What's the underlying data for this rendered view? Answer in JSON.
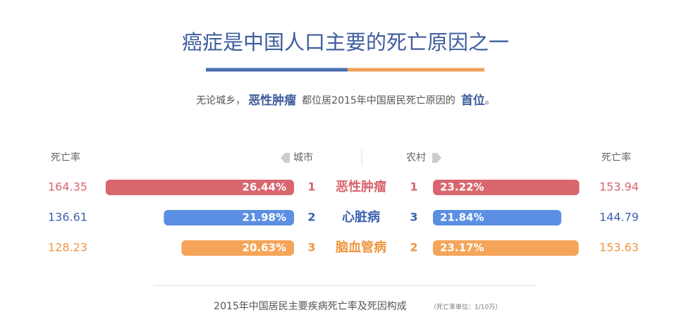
{
  "title": "癌症是中国人口主要的死亡原因之一",
  "subtitle": {
    "before": "无论城乡，",
    "highlight1": "恶性肿瘤",
    "middle": "都位居2015年中国居民死亡原因的",
    "highlight2": "首位",
    "after": "。"
  },
  "headers": {
    "left_rate": "死亡率",
    "city": "城市",
    "rural": "农村",
    "right_rate": "死亡率"
  },
  "rows": [
    {
      "disease": "恶性肿瘤",
      "color": "#d9666f",
      "city_rate": "164.35",
      "city_share": 26.44,
      "city_share_label": "26.44%",
      "city_rank": "1",
      "rural_rank": "1",
      "rural_share": 23.22,
      "rural_share_label": "23.22%",
      "rural_rate": "153.94"
    },
    {
      "disease": "心脏病",
      "color": "#5b8fe3",
      "city_rate": "136.61",
      "city_share": 21.98,
      "city_share_label": "21.98%",
      "city_rank": "2",
      "rural_rank": "3",
      "rural_share": 21.84,
      "rural_share_label": "21.84%",
      "rural_rate": "144.79"
    },
    {
      "disease": "脑血管病",
      "color": "#f5a55a",
      "city_rate": "128.23",
      "city_share": 20.63,
      "city_share_label": "20.63%",
      "city_rank": "3",
      "rural_rank": "2",
      "rural_share": 23.17,
      "rural_share_label": "23.17%",
      "rural_rate": "153.63"
    }
  ],
  "footer": {
    "caption": "2015年中国居民主要疾病死亡率及死因构成",
    "unit_note": "（死亡率单位：1/10万）"
  }
}
